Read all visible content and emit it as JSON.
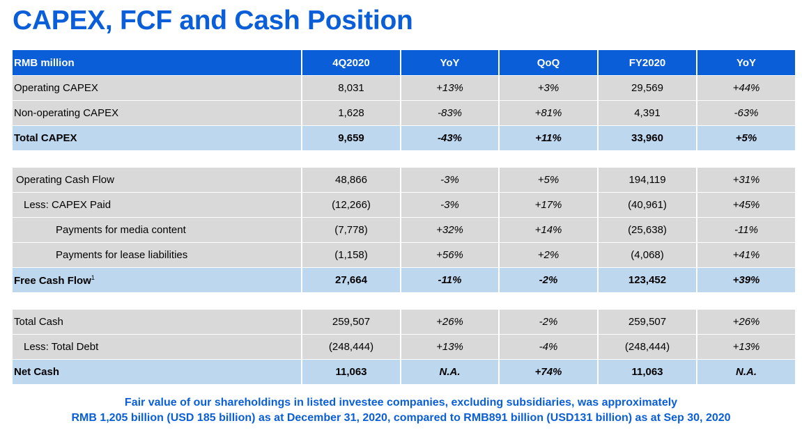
{
  "title": "CAPEX, FCF and Cash Position",
  "header": [
    "RMB million",
    "4Q2020",
    "YoY",
    "QoQ",
    "FY2020",
    "YoY"
  ],
  "sections": [
    [
      {
        "label": "Operating CAPEX",
        "v": [
          "8,031",
          "+13%",
          "+3%",
          "29,569",
          "+44%"
        ]
      },
      {
        "label": "Non-operating CAPEX",
        "v": [
          "1,628",
          "-83%",
          "+81%",
          "4,391",
          "-63%"
        ]
      },
      {
        "label": "Total CAPEX",
        "v": [
          "9,659",
          "-43%",
          "+11%",
          "33,960",
          "+5%"
        ]
      }
    ],
    [
      {
        "label": "Operating Cash Flow",
        "v": [
          "48,866",
          "-3%",
          "+5%",
          "194,119",
          "+31%"
        ]
      },
      {
        "label": "Less: CAPEX Paid",
        "v": [
          "(12,266)",
          "-3%",
          "+17%",
          "(40,961)",
          "+45%"
        ]
      },
      {
        "label": "Payments for media content",
        "v": [
          "(7,778)",
          "+32%",
          "+14%",
          "(25,638)",
          "-11%"
        ]
      },
      {
        "label": "Payments for lease liabilities",
        "v": [
          "(1,158)",
          "+56%",
          "+2%",
          "(4,068)",
          "+41%"
        ]
      },
      {
        "label": "Free Cash Flow",
        "sup": "1",
        "v": [
          "27,664",
          "-11%",
          "-2%",
          "123,452",
          "+39%"
        ]
      }
    ],
    [
      {
        "label": "Total Cash",
        "v": [
          "259,507",
          "+26%",
          "-2%",
          "259,507",
          "+26%"
        ]
      },
      {
        "label": "Less: Total Debt",
        "v": [
          "(248,444)",
          "+13%",
          "-4%",
          "(248,444)",
          "+13%"
        ]
      },
      {
        "label": "Net Cash",
        "v": [
          "11,063",
          "N.A.",
          "+74%",
          "11,063",
          "N.A."
        ]
      }
    ]
  ],
  "footnote": {
    "line1": "Fair value of our shareholdings in listed investee companies, excluding subsidiaries, was approximately",
    "line2": "RMB 1,205 billion (USD 185 billion) as at December 31, 2020, compared to RMB891 billion (USD131 billion) as at Sep 30, 2020"
  },
  "colors": {
    "accent": "#0a5ed7",
    "row_gray": "#d9d9d9",
    "row_total": "#bdd7ee"
  }
}
